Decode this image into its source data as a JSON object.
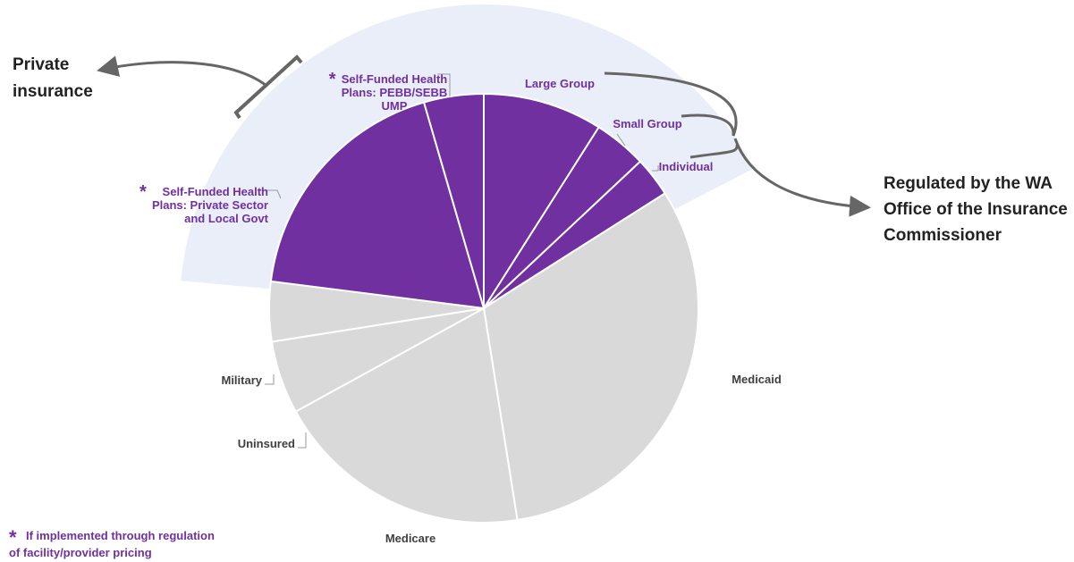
{
  "colors": {
    "private": "#7030a0",
    "public": "#d9d9d9",
    "highlight": "#e9eef8",
    "callout": "#666666"
  },
  "annotations": {
    "private_label": [
      "Private",
      "insurance"
    ],
    "regulated_label": [
      "Regulated by the WA",
      "Office of the Insurance",
      "Commissioner"
    ],
    "footnote_star": "*",
    "footnote": [
      "If implemented through regulation",
      "of facility/provider pricing"
    ]
  },
  "chart_data": {
    "type": "pie",
    "title": "",
    "start_angle_deg": 0,
    "direction": "clockwise",
    "slices": [
      {
        "label": "Large Group",
        "value": 9.0,
        "group": "private",
        "starred": false
      },
      {
        "label": "Small Group",
        "value": 4.0,
        "group": "private",
        "starred": false
      },
      {
        "label": "Individual",
        "value": 3.0,
        "group": "private",
        "starred": false
      },
      {
        "label": "Medicaid",
        "value": 31.5,
        "group": "public",
        "starred": false
      },
      {
        "label": "Medicare",
        "value": 19.5,
        "group": "public",
        "starred": false
      },
      {
        "label": "Uninsured",
        "value": 5.5,
        "group": "public",
        "starred": false
      },
      {
        "label": "Military",
        "value": 4.5,
        "group": "public",
        "starred": false
      },
      {
        "label": "Self-Funded Health Plans: Private Sector and Local Govt",
        "value": 18.5,
        "group": "private",
        "starred": true
      },
      {
        "label": "Self-Funded Health Plans: PEBB/SEBB UMP",
        "value": 4.5,
        "group": "private",
        "starred": true
      }
    ],
    "slice_labels": [
      [
        "Large Group"
      ],
      [
        "Small Group"
      ],
      [
        "Individual"
      ],
      [
        "Medicaid"
      ],
      [
        "Medicare"
      ],
      [
        "Uninsured"
      ],
      [
        "Military"
      ],
      [
        "Self-Funded Health",
        "Plans: Private Sector",
        "and Local Govt"
      ],
      [
        "Self-Funded Health",
        "Plans: PEBB/SEBB",
        "UMP"
      ]
    ]
  }
}
